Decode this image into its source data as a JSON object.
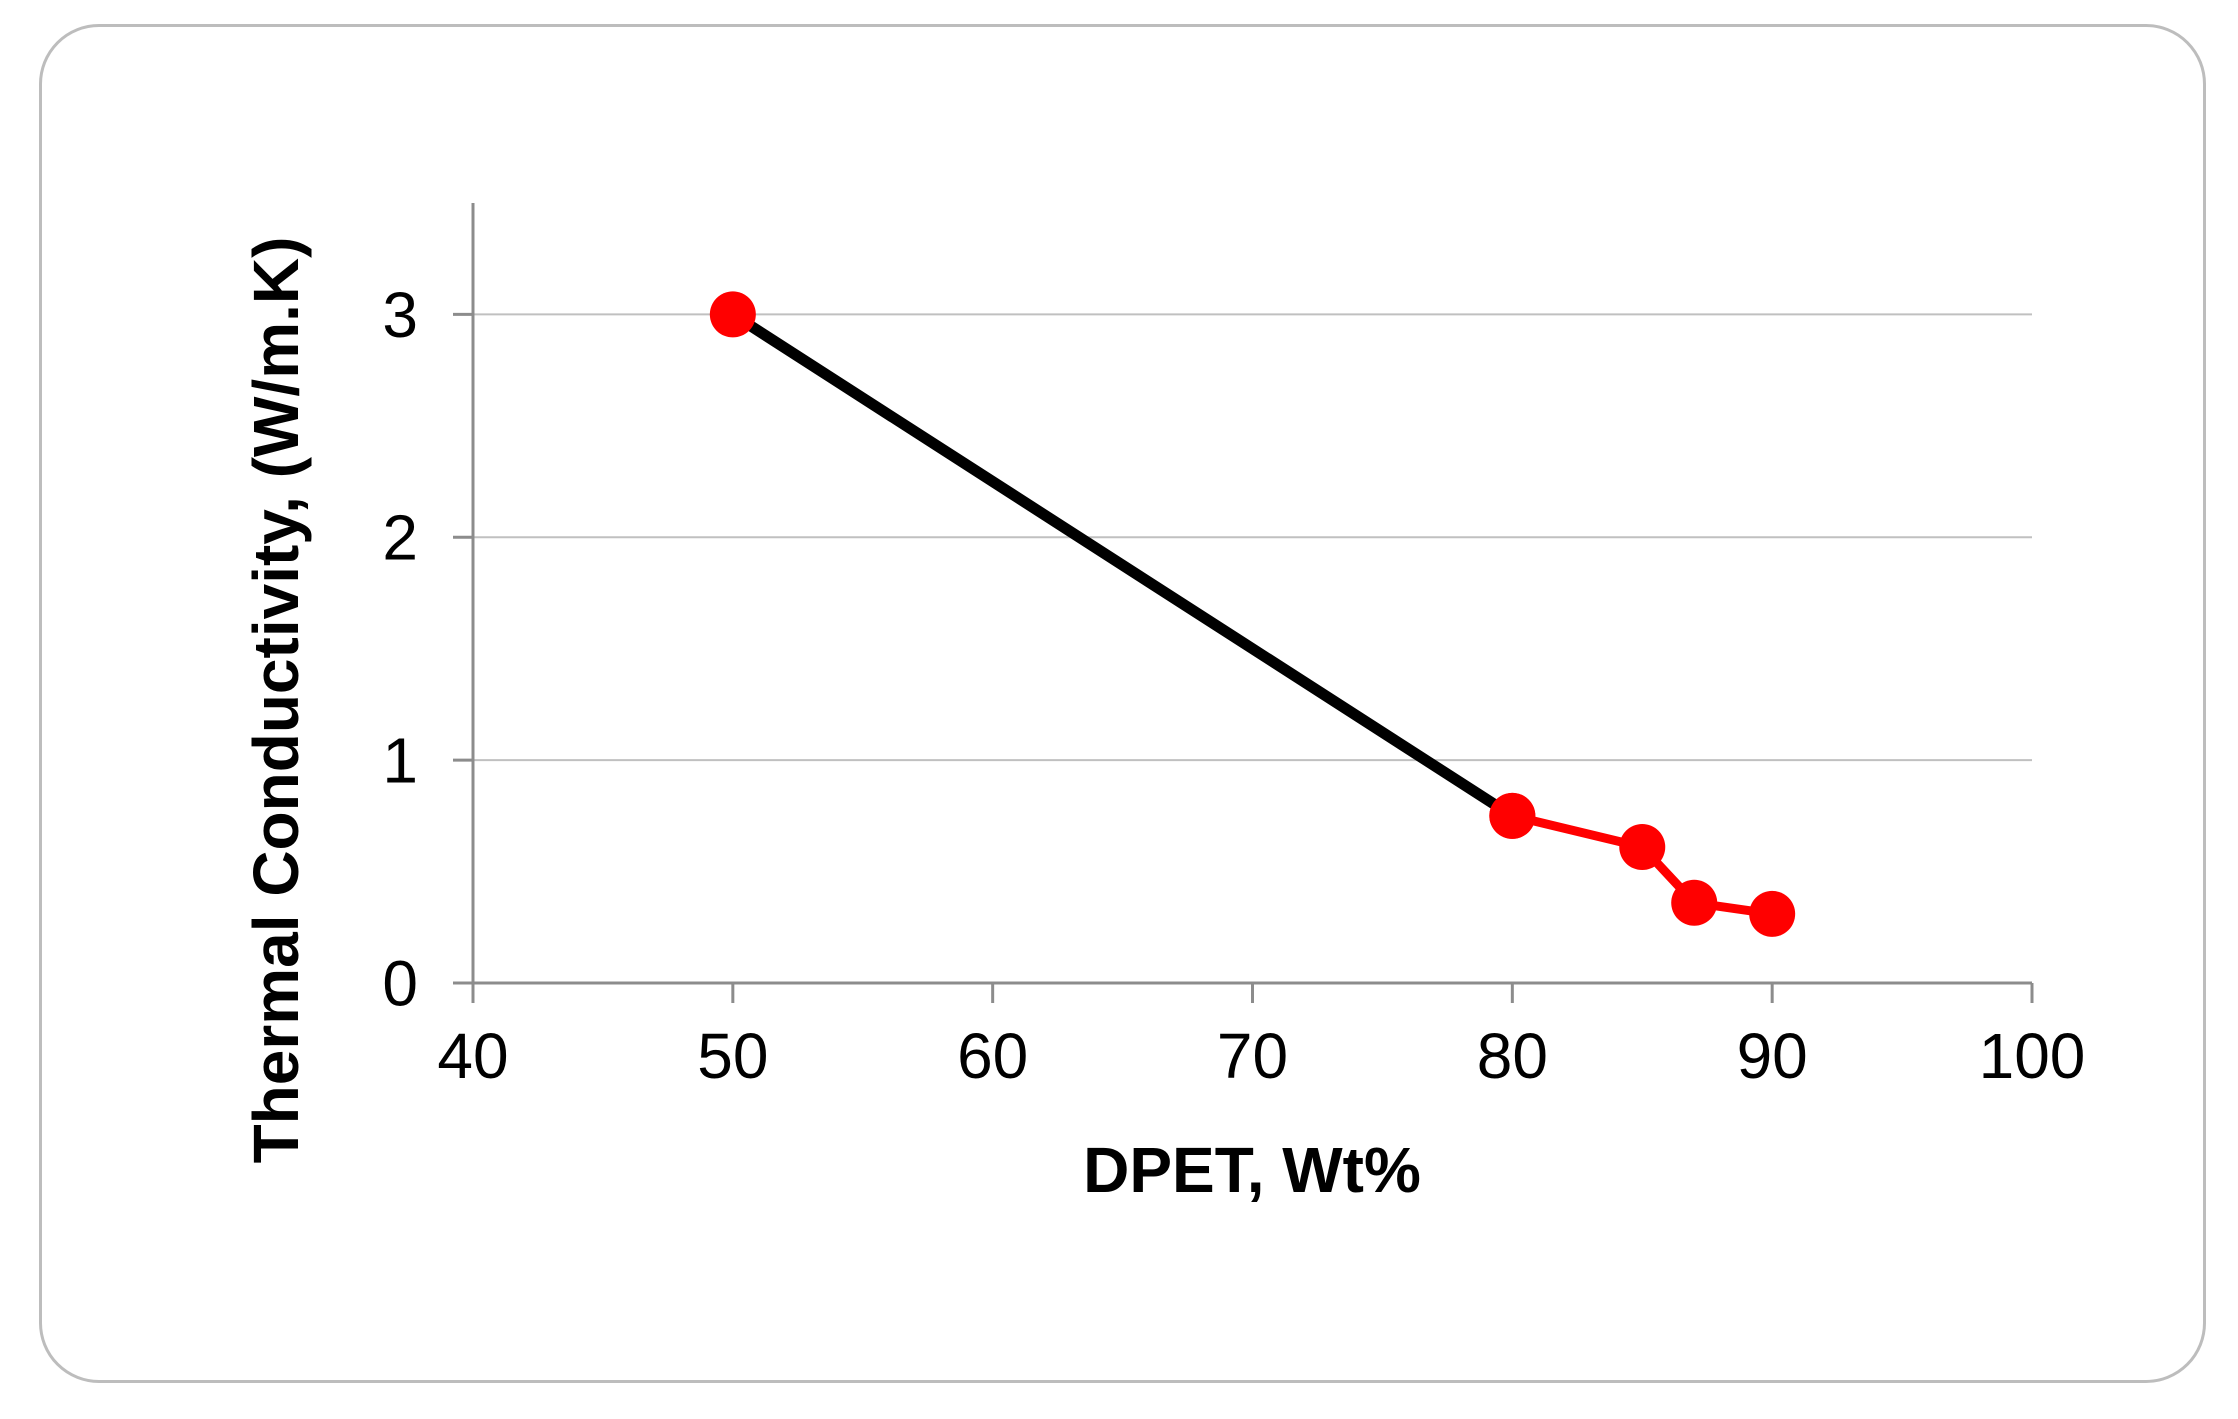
{
  "figure": {
    "background": "#FFFFFF",
    "border_color": "#BDBDBD"
  },
  "chart_data": {
    "type": "line",
    "title": "",
    "xlabel": "DPET, Wt%",
    "ylabel": "Thermal Conductivity, (W/m.K)",
    "xlim": [
      40,
      100
    ],
    "ylim": [
      0,
      3.5
    ],
    "x_ticks": [
      40,
      50,
      60,
      70,
      80,
      90,
      100
    ],
    "y_ticks": [
      0,
      1,
      2,
      3
    ],
    "grid": "horizontal-only",
    "legend": "none",
    "axis_color": "#8C8C8C",
    "grid_color": "#C0C0C0",
    "marker_shape": "circle",
    "series": [
      {
        "name": "series-1",
        "line_color": "#000000",
        "line_width": 11,
        "marker_color": "#FF0000",
        "x": [
          50,
          80
        ],
        "y": [
          3.0,
          0.75
        ]
      },
      {
        "name": "series-2",
        "line_color": "#FF0000",
        "line_width": 9,
        "marker_color": "#FF0000",
        "x": [
          80,
          85,
          87,
          90
        ],
        "y": [
          0.75,
          0.61,
          0.36,
          0.31
        ]
      }
    ]
  }
}
